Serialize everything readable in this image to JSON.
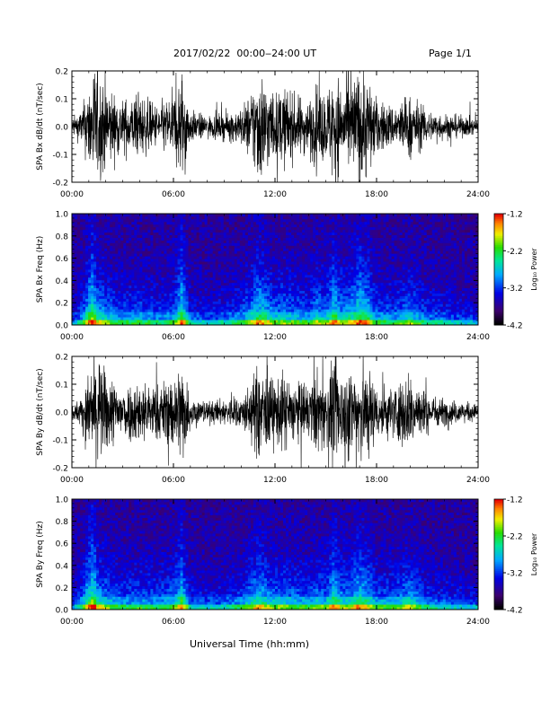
{
  "header": {
    "title": "2017/02/22  00:00‒24:00 UT",
    "page": "Page 1/1"
  },
  "xaxis": {
    "label": "Universal Time (hh:mm)",
    "ticks": [
      "00:00",
      "06:00",
      "12:00",
      "18:00",
      "24:00"
    ],
    "range_hours": [
      0,
      24
    ]
  },
  "colorbar": {
    "label": "Log₁₀ Power",
    "ticks": [
      "-1.2",
      "-2.2",
      "-3.2",
      "-4.2"
    ],
    "range": [
      -4.2,
      -1.2
    ]
  },
  "chart_data": [
    {
      "type": "line",
      "ylabel": "SPA Bx dB/dt (nT/sec)",
      "ylim": [
        -0.2,
        0.2
      ],
      "yticks": [
        "0.2",
        "0.1",
        "0.0",
        "-0.1",
        "-0.2"
      ],
      "x_hours": [
        0,
        0.5,
        1,
        1.25,
        1.5,
        2,
        2.5,
        3,
        4,
        5,
        6,
        6.5,
        7,
        8,
        9,
        10,
        10.5,
        11,
        11.5,
        12,
        12.5,
        13,
        14,
        14.5,
        15,
        15.5,
        16,
        16.5,
        17,
        17.5,
        18,
        19,
        20,
        21,
        22,
        23,
        24
      ],
      "envelope": [
        0.03,
        0.06,
        0.15,
        0.25,
        0.2,
        0.18,
        0.12,
        0.1,
        0.12,
        0.08,
        0.12,
        0.22,
        0.06,
        0.04,
        0.05,
        0.07,
        0.12,
        0.22,
        0.18,
        0.12,
        0.15,
        0.12,
        0.1,
        0.16,
        0.12,
        0.22,
        0.15,
        0.18,
        0.22,
        0.2,
        0.1,
        0.08,
        0.12,
        0.06,
        0.05,
        0.04,
        0.03
      ]
    },
    {
      "type": "heatmap",
      "ylabel": "SPA Bx Freq (Hz)",
      "ylim": [
        0,
        1.0
      ],
      "yticks": [
        "1.0",
        "0.8",
        "0.6",
        "0.4",
        "0.2",
        "0.0"
      ],
      "x_hours": [
        0,
        0.5,
        1,
        1.25,
        1.5,
        2,
        2.5,
        3,
        4,
        5,
        6,
        6.5,
        7,
        8,
        9,
        10,
        10.5,
        11,
        11.5,
        12,
        12.5,
        13,
        14,
        14.5,
        15,
        15.5,
        16,
        16.5,
        17,
        17.5,
        18,
        19,
        20,
        21,
        22,
        23,
        24
      ],
      "activity": [
        0.2,
        0.4,
        0.8,
        0.95,
        0.7,
        0.6,
        0.5,
        0.45,
        0.5,
        0.4,
        0.5,
        0.9,
        0.35,
        0.3,
        0.35,
        0.45,
        0.6,
        0.8,
        0.7,
        0.55,
        0.6,
        0.55,
        0.5,
        0.65,
        0.55,
        0.85,
        0.6,
        0.7,
        0.85,
        0.75,
        0.5,
        0.45,
        0.6,
        0.4,
        0.35,
        0.3,
        0.25
      ],
      "colorbar_range": [
        -4.2,
        -1.2
      ]
    },
    {
      "type": "line",
      "ylabel": "SPA By dB/dt (nT/sec)",
      "ylim": [
        -0.2,
        0.2
      ],
      "yticks": [
        "0.2",
        "0.1",
        "0.0",
        "-0.1",
        "-0.2"
      ],
      "x_hours": [
        0,
        0.5,
        1,
        1.25,
        1.5,
        2,
        2.5,
        3,
        4,
        5,
        6,
        6.5,
        7,
        8,
        9,
        10,
        10.5,
        11,
        11.5,
        12,
        12.5,
        13,
        14,
        14.5,
        15,
        15.5,
        16,
        16.5,
        17,
        17.5,
        18,
        19,
        20,
        21,
        22,
        23,
        24
      ],
      "envelope": [
        0.03,
        0.05,
        0.14,
        0.22,
        0.2,
        0.16,
        0.12,
        0.1,
        0.12,
        0.1,
        0.14,
        0.2,
        0.06,
        0.04,
        0.05,
        0.06,
        0.1,
        0.18,
        0.15,
        0.12,
        0.15,
        0.12,
        0.1,
        0.16,
        0.12,
        0.2,
        0.16,
        0.18,
        0.2,
        0.18,
        0.1,
        0.1,
        0.15,
        0.07,
        0.05,
        0.04,
        0.03
      ]
    },
    {
      "type": "heatmap",
      "ylabel": "SPA By Freq (Hz)",
      "ylim": [
        0,
        1.0
      ],
      "yticks": [
        "1.0",
        "0.8",
        "0.6",
        "0.4",
        "0.2",
        "0.0"
      ],
      "x_hours": [
        0,
        0.5,
        1,
        1.25,
        1.5,
        2,
        2.5,
        3,
        4,
        5,
        6,
        6.5,
        7,
        8,
        9,
        10,
        10.5,
        11,
        11.5,
        12,
        12.5,
        13,
        14,
        14.5,
        15,
        15.5,
        16,
        16.5,
        17,
        17.5,
        18,
        19,
        20,
        21,
        22,
        23,
        24
      ],
      "activity": [
        0.2,
        0.4,
        0.8,
        0.95,
        0.7,
        0.6,
        0.5,
        0.45,
        0.5,
        0.45,
        0.55,
        0.85,
        0.35,
        0.3,
        0.35,
        0.45,
        0.6,
        0.75,
        0.65,
        0.55,
        0.6,
        0.55,
        0.5,
        0.6,
        0.55,
        0.85,
        0.6,
        0.65,
        0.8,
        0.7,
        0.5,
        0.5,
        0.65,
        0.4,
        0.35,
        0.3,
        0.25
      ],
      "colorbar_range": [
        -4.2,
        -1.2
      ]
    }
  ]
}
